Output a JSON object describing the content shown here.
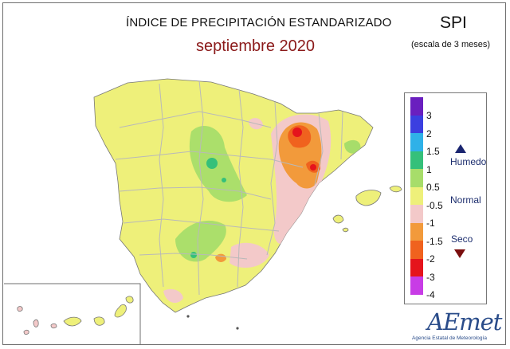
{
  "header": {
    "title": "ÍNDICE DE PRECIPITACIÓN ESTANDARIZADO",
    "subtitle": "septiembre 2020",
    "index_name": "SPI",
    "scale_note": "(escala de 3 meses)"
  },
  "legend": {
    "classes": [
      {
        "label": "3",
        "color": "#6a1fbf"
      },
      {
        "label": "2",
        "color": "#3b3fe0"
      },
      {
        "label": "1.5",
        "color": "#2fb1e8"
      },
      {
        "label": "1",
        "color": "#35c07a"
      },
      {
        "label": "0.5",
        "color": "#a7dd6a"
      },
      {
        "label": "-0.5",
        "color": "#eef07a"
      },
      {
        "label": "-1",
        "color": "#f3c9c9"
      },
      {
        "label": "-1.5",
        "color": "#f29a3b"
      },
      {
        "label": "-2",
        "color": "#f0621e"
      },
      {
        "label": "-3",
        "color": "#e5141c"
      },
      {
        "label": "-4",
        "color": "#c83ce6"
      }
    ],
    "humid_label": "Humedo",
    "normal_label": "Normal",
    "dry_label": "Seco",
    "humid_icon": "triangle-up-icon",
    "dry_icon": "triangle-down-icon"
  },
  "logo": {
    "name": "AEmet",
    "tagline": "Agencia Estatal de Meteorología"
  }
}
